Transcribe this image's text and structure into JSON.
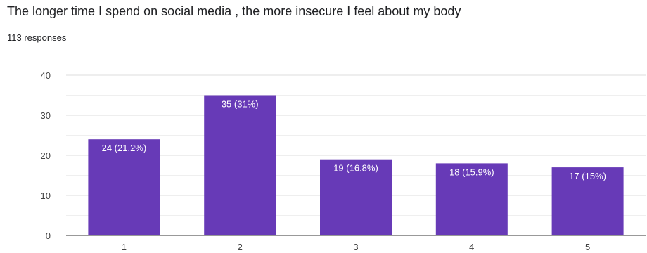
{
  "header": {
    "title": "The longer time I spend on social media , the more insecure I feel about my body",
    "responses": "113 responses"
  },
  "colors": {
    "bar": "#673ab7",
    "grid": "#e6e6e6",
    "axis": "#333333"
  },
  "chart_data": {
    "type": "bar",
    "title": "The longer time I spend on social media , the more insecure I feel about my body",
    "xlabel": "",
    "ylabel": "",
    "categories": [
      "1",
      "2",
      "3",
      "4",
      "5"
    ],
    "values": [
      24,
      35,
      19,
      18,
      17
    ],
    "data_labels": [
      "24 (21.2%)",
      "35 (31%)",
      "19 (16.8%)",
      "18 (15.9%)",
      "17 (15%)"
    ],
    "ylim": [
      0,
      40
    ],
    "yticks": [
      0,
      10,
      20,
      30,
      40
    ],
    "grid": true,
    "legend": "none"
  }
}
